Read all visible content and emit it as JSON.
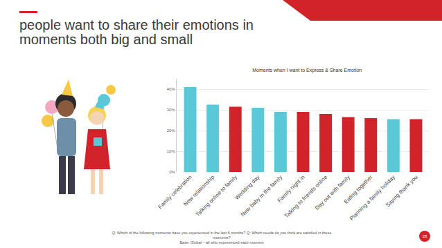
{
  "slide": {
    "title": "people want to share their emotions in moments both big and small",
    "footnote": [
      "Q: Which of the following moments have you experienced in the last 6 months? Q: Which needs do you think are satisfied in these moments?",
      "Base: Global – all who experienced each moment"
    ],
    "page": "28"
  },
  "chart_data": {
    "type": "bar",
    "title": "Moments when I want to Express & Share Emotion",
    "categories": [
      "Family celebration",
      "New relationship",
      "Talking online to family",
      "Wedding day",
      "New baby in the family",
      "Family night in",
      "Talking to friends online",
      "Day out with family",
      "Eating together",
      "Planning a family holiday",
      "Saying thank you"
    ],
    "values": [
      41,
      32.5,
      31.5,
      31,
      29,
      29,
      28,
      26.5,
      26,
      25.5,
      25.5
    ],
    "colors": [
      "#5bc8d8",
      "#5bc8d8",
      "#d2232a",
      "#5bc8d8",
      "#5bc8d8",
      "#d2232a",
      "#d2232a",
      "#d2232a",
      "#d2232a",
      "#5bc8d8",
      "#d2232a"
    ],
    "ylim": [
      0,
      45
    ],
    "yticks": [
      {
        "value": 0,
        "label": "0%"
      },
      {
        "value": 10,
        "label": "10%"
      },
      {
        "value": 20,
        "label": "20%"
      },
      {
        "value": 30,
        "label": "30%"
      },
      {
        "value": 40,
        "label": "40%"
      }
    ],
    "grid": true
  }
}
